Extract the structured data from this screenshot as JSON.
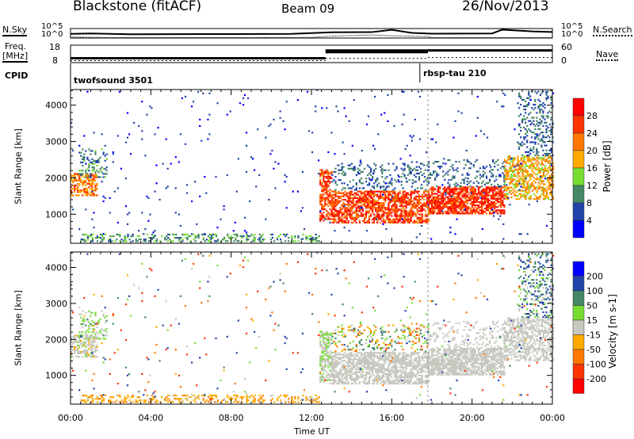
{
  "header": {
    "title": "Blackstone (fitACF)",
    "beam": "Beam 09",
    "date": "26/Nov/2013"
  },
  "top": {
    "nsky_label": "N.Sky",
    "nsky_hi": "10^5",
    "nsky_lo": "10^0",
    "nsearch_label": "N.Search",
    "nsearch_hi": "10^5",
    "nsearch_lo": "10^0",
    "freq_label1": "Freq.",
    "freq_label2": "[MHz]",
    "freq_hi": "18",
    "freq_lo": "8",
    "nave_label": "Nave",
    "nave_hi": "60",
    "nave_lo": "0",
    "cpid_label": "CPID",
    "cpid": [
      {
        "name": "twofsound 3501",
        "start": 0
      },
      {
        "name": "rbsp-tau 210",
        "start": 17.4
      }
    ]
  },
  "chart_data": {
    "type": "heatmap",
    "xlabel": "Time UT",
    "ylabel": "Slant Range [km]",
    "xlim": [
      0,
      24
    ],
    "ylim": [
      200,
      4430
    ],
    "xticks": [
      "00:00",
      "04:00",
      "08:00",
      "12:00",
      "16:00",
      "20:00",
      "00:00"
    ],
    "yticks": [
      1000,
      2000,
      3000,
      4000
    ],
    "mode_change_hour": 17.8,
    "freq": [
      {
        "t0": 0,
        "t1": 12.7,
        "mhz": 10.5
      },
      {
        "t0": 12.7,
        "t1": 17.8,
        "mhz": 14.5
      },
      {
        "t0": 17.8,
        "t1": 24,
        "mhz": 15
      }
    ],
    "nsky": [
      [
        0,
        2.2
      ],
      [
        1,
        2.4
      ],
      [
        3,
        2.0
      ],
      [
        8,
        2.1
      ],
      [
        11,
        2.2
      ],
      [
        12,
        2.6
      ],
      [
        13,
        3.0
      ],
      [
        15,
        3.1
      ],
      [
        16,
        4.3
      ],
      [
        17,
        2.7
      ],
      [
        18,
        2.3
      ],
      [
        21,
        2.4
      ],
      [
        21.5,
        4.4
      ],
      [
        23,
        3.5
      ],
      [
        24,
        3.2
      ]
    ],
    "nsearch": [
      [
        0,
        0.5
      ],
      [
        2,
        0.2
      ],
      [
        8,
        0.2
      ],
      [
        12,
        0.3
      ],
      [
        13,
        1.0
      ],
      [
        15,
        1.6
      ],
      [
        16,
        1.2
      ],
      [
        17.8,
        0.8
      ],
      [
        18,
        0.2
      ],
      [
        24,
        0.2
      ]
    ],
    "power_scale": {
      "label": "Power [dB]",
      "ticks": [
        "4",
        "8",
        "12",
        "16",
        "20",
        "24",
        "28"
      ],
      "colors": [
        "#0000ff",
        "#2244aa",
        "#448866",
        "#77dd33",
        "#ffaa00",
        "#ff7700",
        "#ff3300",
        "#ff0000"
      ]
    },
    "velocity_scale": {
      "label": "Velocity [m s-1]",
      "ticks": [
        "200",
        "100",
        "50",
        "15",
        "-15",
        "-50",
        "-100",
        "-200"
      ],
      "colors": [
        "#0000ff",
        "#2244aa",
        "#448866",
        "#77dd33",
        "#c8c8c0",
        "#ffaa00",
        "#ff7700",
        "#ff3300",
        "#ff0000"
      ]
    },
    "regions": [
      {
        "t0": 0.5,
        "t1": 12.5,
        "r0": 240,
        "r1": 440,
        "p": [
          6,
          16
        ],
        "v": [
          -60,
          -10
        ],
        "d": 0.35
      },
      {
        "t0": 0,
        "t1": 1.3,
        "r0": 1500,
        "r1": 2100,
        "p": [
          16,
          28
        ],
        "v": [
          -20,
          20
        ],
        "d": 0.6
      },
      {
        "t0": 0.4,
        "t1": 1.8,
        "r0": 2000,
        "r1": 2800,
        "p": [
          6,
          14
        ],
        "v": [
          -20,
          60
        ],
        "d": 0.3
      },
      {
        "t0": 12.4,
        "t1": 13.0,
        "r0": 800,
        "r1": 2200,
        "p": [
          20,
          30
        ],
        "v": [
          -15,
          30
        ],
        "d": 0.6
      },
      {
        "t0": 13,
        "t1": 17.8,
        "r0": 750,
        "r1": 1650,
        "p": [
          20,
          31
        ],
        "v": [
          -14,
          14
        ],
        "d": 0.7
      },
      {
        "t0": 13,
        "t1": 17.8,
        "r0": 1650,
        "r1": 2400,
        "p": [
          4,
          12
        ],
        "v": [
          -100,
          100
        ],
        "d": 0.2
      },
      {
        "t0": 17.8,
        "t1": 21.6,
        "r0": 1000,
        "r1": 1750,
        "p": [
          22,
          31
        ],
        "v": [
          -14,
          14
        ],
        "d": 0.75
      },
      {
        "t0": 17.8,
        "t1": 21.6,
        "r0": 1750,
        "r1": 2500,
        "p": [
          4,
          12
        ],
        "v": [
          -14,
          14
        ],
        "d": 0.2
      },
      {
        "t0": 21.6,
        "t1": 24,
        "r0": 1400,
        "r1": 2600,
        "p": [
          14,
          24
        ],
        "v": [
          -14,
          14
        ],
        "d": 0.55
      },
      {
        "t0": 22.3,
        "t1": 24,
        "r0": 2600,
        "r1": 4400,
        "p": [
          4,
          12
        ],
        "v": [
          -14,
          150
        ],
        "d": 0.25
      },
      {
        "t0": 0,
        "t1": 24,
        "r0": 300,
        "r1": 4400,
        "p": [
          2,
          8
        ],
        "v": [
          -200,
          200
        ],
        "d": 0.012
      }
    ]
  }
}
